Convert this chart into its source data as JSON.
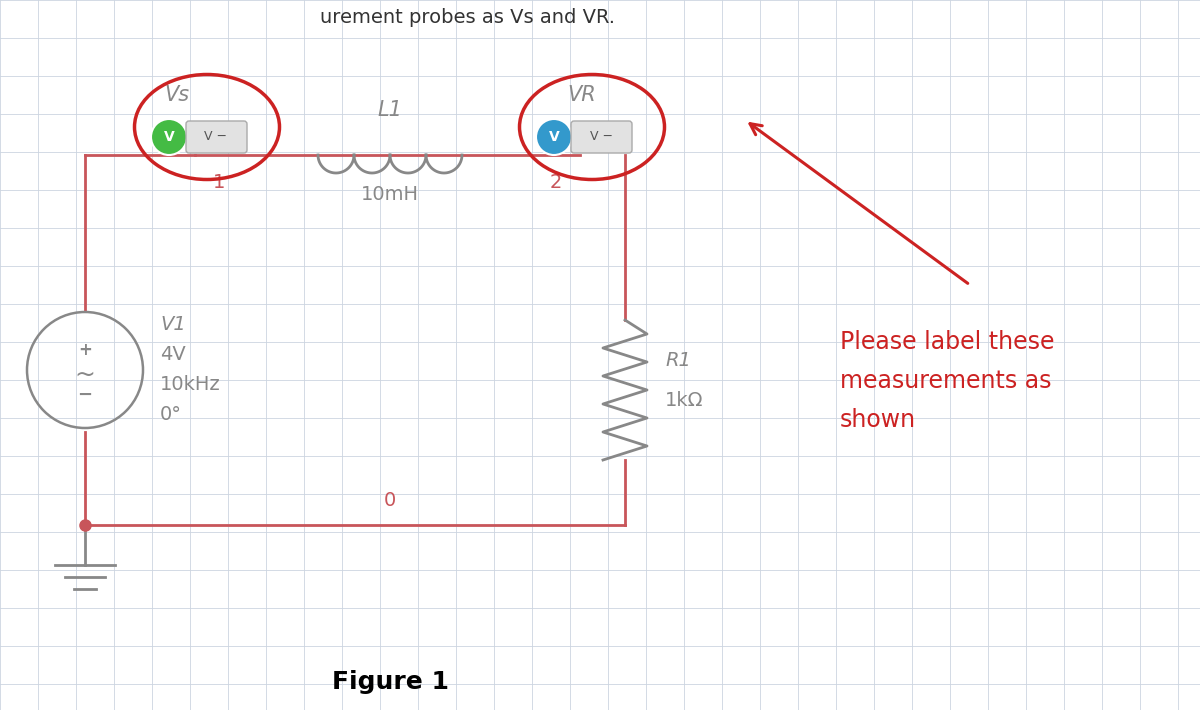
{
  "bg_color": "#ffffff",
  "grid_color": "#ccd5e0",
  "circuit_color": "#c8555a",
  "component_color": "#888888",
  "node_dot_color": "#c8555a",
  "figure_title": "Figure 1",
  "annotation_text": "Please label these\nmeasurements as\nshown",
  "annotation_color": "#cc2222",
  "vs_label": "Vs",
  "vr_label": "VR",
  "l1_label": "L1",
  "l1_value": "10mH",
  "v1_label": "V1",
  "v1_value1": "4V",
  "v1_value2": "10kHz",
  "v1_value3": "0°",
  "r1_label": "R1",
  "r1_value": "1kΩ",
  "node1_label": "1",
  "node2_label": "2",
  "node0_label": "0",
  "circle_color": "#cc2222",
  "green_color": "#44bb44",
  "blue_color": "#3399cc",
  "header_text": "urement probes as Vs and VR."
}
